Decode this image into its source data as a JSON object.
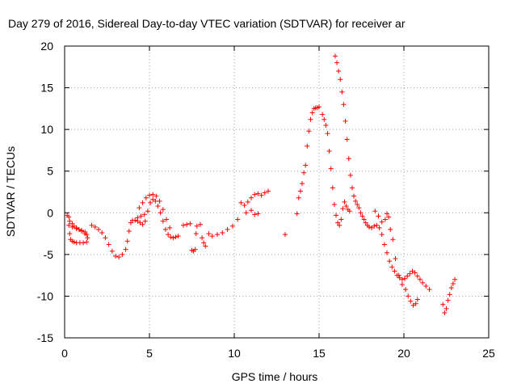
{
  "chart_data": {
    "type": "scatter",
    "title": "Day 279 of 2016, Sidereal Day-to-day VTEC variation (SDTVAR) for receiver ar",
    "xlabel": "GPS time / hours",
    "ylabel": "SDTVAR / TECUs",
    "xlim": [
      0,
      25
    ],
    "ylim": [
      -15,
      20
    ],
    "x_ticks": [
      "0",
      "5",
      "10",
      "15",
      "20",
      "25"
    ],
    "y_ticks": [
      "-15",
      "-10",
      "-5",
      "0",
      "5",
      "10",
      "15",
      "20"
    ],
    "grid": true,
    "marker": "+",
    "color": "#ff0000",
    "series": [
      {
        "x": [
          0.15,
          0.25,
          0.3,
          0.35,
          0.45,
          0.55,
          0.7,
          0.9,
          1.1,
          1.3,
          1.35,
          1.2,
          1.0,
          0.85,
          0.7,
          0.55,
          0.45,
          0.3,
          0.25,
          0.45,
          0.7,
          1.0,
          1.2,
          1.3,
          1.6,
          1.8,
          2.0,
          2.2,
          2.4,
          2.6,
          2.8,
          3.0,
          3.2,
          3.4,
          3.6,
          3.7,
          3.8,
          3.9,
          4.0,
          4.15,
          4.3,
          4.45,
          4.6,
          4.75,
          4.9,
          5.05,
          5.2,
          5.35,
          5.5,
          5.65,
          5.8,
          5.95,
          6.1,
          6.25,
          6.4,
          6.55,
          6.7,
          4.4,
          4.6,
          4.8,
          5.0,
          5.2,
          5.4,
          5.6,
          5.8,
          6.0,
          6.2,
          4.3,
          4.5,
          4.7
        ],
        "y": [
          -0.3,
          -1.5,
          -2.5,
          -3.2,
          -3.4,
          -3.5,
          -3.6,
          -3.6,
          -3.6,
          -3.5,
          -3.0,
          -2.5,
          -2.2,
          -2.0,
          -1.8,
          -1.6,
          -1.3,
          -1.0,
          -0.5,
          -1.7,
          -1.9,
          -2.1,
          -2.3,
          -2.6,
          -1.5,
          -1.7,
          -2.0,
          -2.4,
          -3.0,
          -3.8,
          -4.6,
          -5.2,
          -5.3,
          -5.0,
          -4.4,
          -3.4,
          -2.2,
          -1.2,
          -0.9,
          -0.9,
          -1.0,
          -1.2,
          -1.4,
          -1.0,
          0.2,
          1.2,
          1.6,
          1.4,
          0.8,
          0.0,
          -1.0,
          -2.0,
          -2.6,
          -2.9,
          -3.0,
          -2.9,
          -2.8,
          0.6,
          1.2,
          1.8,
          2.1,
          2.2,
          2.0,
          1.4,
          0.4,
          -0.8,
          -1.8,
          -0.6,
          -0.4,
          -0.2
        ]
      },
      {
        "x": [
          7.0,
          7.2,
          7.4,
          7.5,
          7.6,
          7.7,
          7.75,
          7.8,
          8.0,
          8.1,
          8.2,
          8.3,
          8.5,
          8.7,
          9.0,
          9.3,
          9.6,
          9.9,
          10.2,
          10.4,
          10.6,
          10.8,
          11.0,
          11.2,
          11.4,
          11.6,
          11.8,
          12.0,
          10.7,
          11.0,
          11.2,
          11.4,
          13.0,
          13.7
        ],
        "y": [
          -1.5,
          -1.4,
          -1.3,
          -4.5,
          -4.6,
          -4.4,
          -2.5,
          -1.6,
          -1.4,
          -3.0,
          -3.6,
          -4.0,
          -2.5,
          -2.8,
          -2.6,
          -2.4,
          -2.0,
          -1.6,
          -0.8,
          1.2,
          0.9,
          1.3,
          1.8,
          2.2,
          2.3,
          2.1,
          2.4,
          2.6,
          0.0,
          0.3,
          -0.2,
          -0.1,
          -2.6,
          -0.1
        ]
      },
      {
        "x": [
          13.8,
          13.9,
          14.0,
          14.1,
          14.2,
          14.3,
          14.4,
          14.5,
          14.6,
          14.7,
          14.8,
          14.9,
          15.0,
          15.2,
          15.3,
          15.4,
          15.5,
          15.6,
          15.7,
          15.8,
          15.9,
          16.0,
          16.1,
          16.2,
          16.3,
          16.4,
          16.5,
          16.6,
          16.7,
          16.8
        ],
        "y": [
          1.8,
          2.6,
          3.5,
          4.8,
          5.7,
          8.0,
          9.8,
          11.2,
          12.0,
          12.5,
          12.6,
          12.6,
          12.7,
          11.8,
          11.2,
          10.5,
          9.5,
          7.4,
          5.3,
          3.0,
          1.0,
          -0.3,
          -1.2,
          -1.5,
          -0.8,
          0.5,
          1.3,
          0.8,
          0.4,
          0.2
        ]
      },
      {
        "x": [
          15.95,
          16.05,
          16.15,
          16.25,
          16.35,
          16.45,
          16.55,
          16.65,
          16.75,
          16.85,
          16.95,
          17.05,
          17.15,
          17.25,
          17.35,
          17.45,
          17.55,
          17.65,
          17.75,
          17.85,
          17.95,
          18.1,
          18.25,
          18.4,
          18.55,
          18.7,
          18.85,
          19.0,
          19.15,
          19.3,
          19.45,
          19.6,
          19.75,
          19.9,
          20.05,
          20.2,
          20.35,
          20.5,
          20.65,
          20.8,
          20.95,
          21.1,
          21.3,
          21.5
        ],
        "y": [
          18.8,
          18.0,
          17.0,
          16.0,
          14.5,
          13.0,
          11.0,
          8.8,
          6.5,
          4.5,
          3.0,
          2.0,
          1.4,
          1.0,
          0.6,
          0.0,
          -0.4,
          -0.8,
          -1.2,
          -1.5,
          -1.7,
          -1.8,
          -1.6,
          -1.5,
          -1.8,
          -2.6,
          -3.8,
          -4.8,
          -5.8,
          -6.5,
          -7.0,
          -7.5,
          -7.8,
          -8.0,
          -7.9,
          -7.6,
          -7.3,
          -7.0,
          -7.2,
          -7.6,
          -8.0,
          -8.4,
          -8.8,
          -9.2
        ]
      },
      {
        "x": [
          18.3,
          18.5,
          18.7,
          18.9,
          19.0,
          19.1,
          19.2,
          19.35,
          19.5,
          19.7,
          19.9,
          20.1,
          20.25,
          20.4,
          20.55,
          20.7,
          20.8
        ],
        "y": [
          0.2,
          -0.4,
          -1.1,
          -0.8,
          -0.1,
          -0.5,
          -2.0,
          -3.2,
          -5.5,
          -7.5,
          -8.6,
          -9.2,
          -10.0,
          -10.6,
          -11.1,
          -10.9,
          -10.4
        ]
      },
      {
        "x": [
          22.3,
          22.4,
          22.5,
          22.6,
          22.7,
          22.8,
          22.9,
          23.0
        ],
        "y": [
          -11.0,
          -12.0,
          -11.5,
          -10.5,
          -9.8,
          -9.0,
          -8.5,
          -8.0
        ]
      }
    ]
  }
}
